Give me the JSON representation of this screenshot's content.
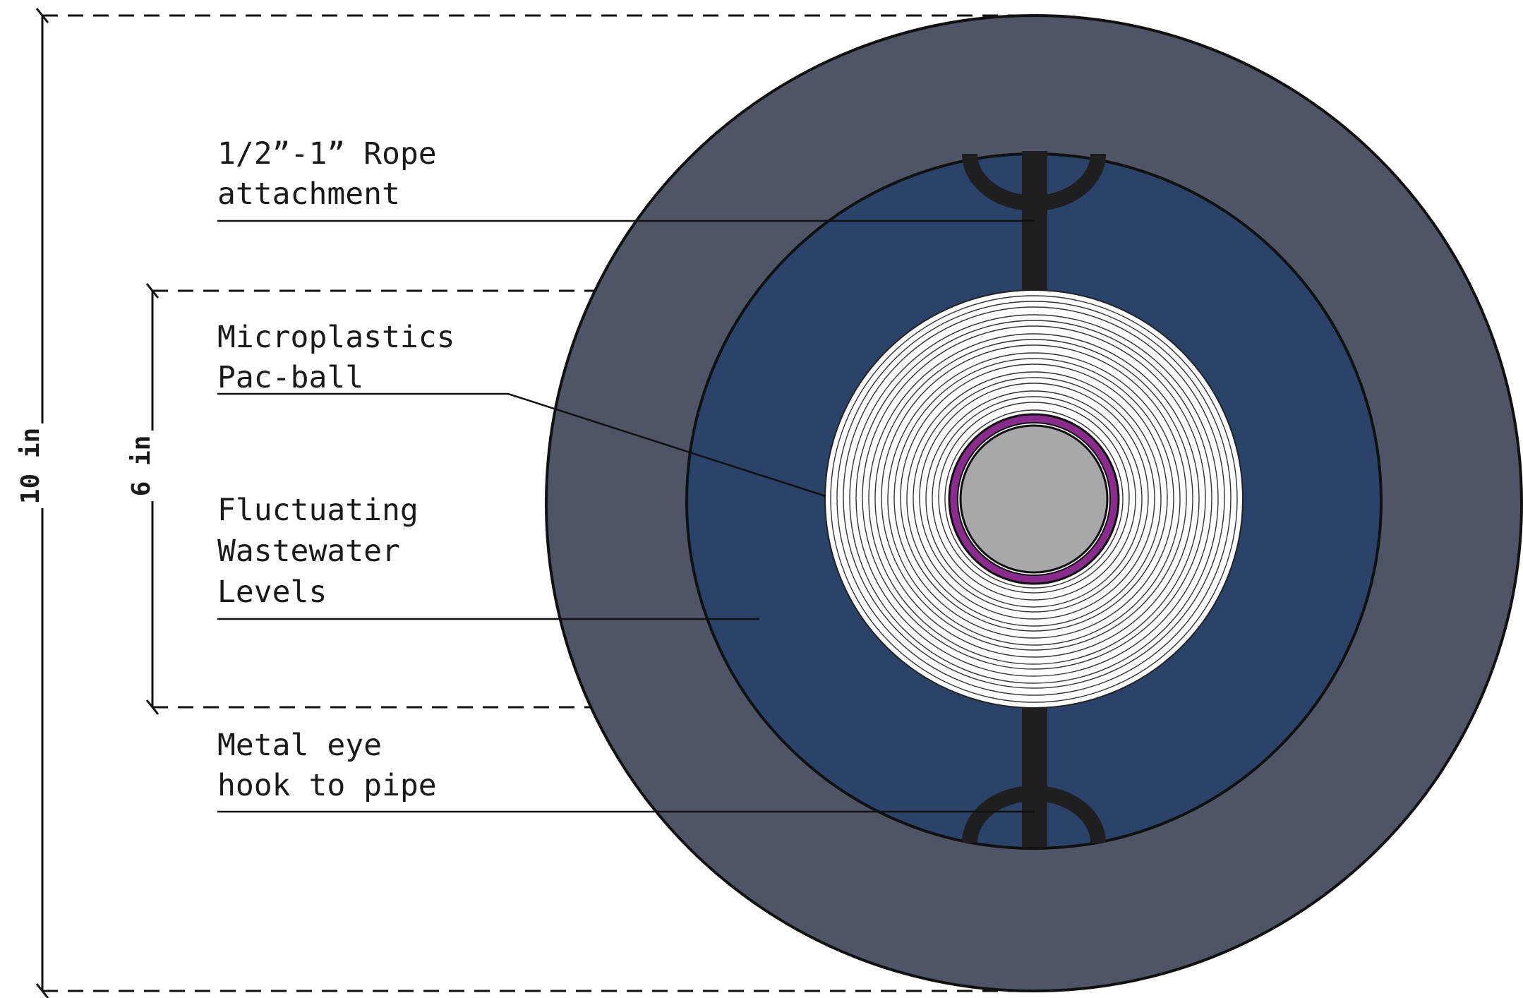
{
  "colors": {
    "outer_ring": "#4f5567",
    "water": "#2b426b",
    "ball": "#ffffff",
    "core": "#a7a8ab",
    "core_ring": "#8a2b8e",
    "hardware": "#1f1f22",
    "line": "#111111"
  },
  "labels": {
    "rope": {
      "line1": "1/2”-1” Rope",
      "line2": "attachment"
    },
    "ball": {
      "line1": "Microplastics",
      "line2": "Pac-ball"
    },
    "water": {
      "line1": "Fluctuating",
      "line2": "Wastewater",
      "line3": "Levels"
    },
    "hook": {
      "line1": "Metal eye",
      "line2": "hook to pipe"
    }
  },
  "dimensions": {
    "outer": "10 in",
    "inner": "6 in"
  }
}
